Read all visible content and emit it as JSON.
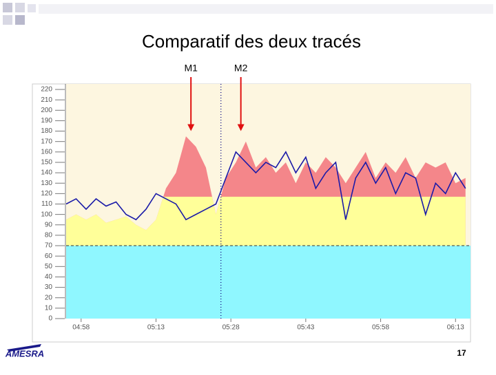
{
  "slide": {
    "title": "Comparatif des deux tracés",
    "page_number": "17",
    "logo": "AMESRA"
  },
  "chart_data": {
    "type": "area-line",
    "x": [
      "04:55",
      "04:57",
      "04:59",
      "05:01",
      "05:03",
      "05:05",
      "05:07",
      "05:09",
      "05:11",
      "05:13",
      "05:15",
      "05:17",
      "05:19",
      "05:21",
      "05:23",
      "05:25",
      "05:27",
      "05:29",
      "05:31",
      "05:33",
      "05:35",
      "05:37",
      "05:39",
      "05:41",
      "05:43",
      "05:45",
      "05:47",
      "05:49",
      "05:51",
      "05:53",
      "05:55",
      "05:57",
      "05:59",
      "06:01",
      "06:03",
      "06:05",
      "06:07",
      "06:09",
      "06:11",
      "06:13",
      "06:15"
    ],
    "series": [
      {
        "style": "area",
        "color": "#f4868a",
        "values": [
          95,
          100,
          95,
          100,
          92,
          95,
          98,
          90,
          85,
          95,
          125,
          140,
          175,
          165,
          145,
          100,
          135,
          150,
          170,
          145,
          155,
          140,
          150,
          130,
          150,
          140,
          155,
          145,
          130,
          145,
          160,
          135,
          150,
          140,
          155,
          135,
          150,
          145,
          150,
          130,
          135
        ]
      },
      {
        "style": "line",
        "color": "#1a1aa8",
        "values": [
          110,
          115,
          105,
          115,
          108,
          112,
          100,
          95,
          105,
          120,
          115,
          110,
          95,
          100,
          105,
          110,
          135,
          160,
          150,
          140,
          150,
          145,
          160,
          140,
          155,
          125,
          140,
          150,
          95,
          135,
          150,
          130,
          145,
          120,
          140,
          135,
          100,
          130,
          120,
          140,
          125
        ]
      }
    ],
    "zones": [
      {
        "from": 0,
        "to": 70,
        "color": "#8ff7ff"
      },
      {
        "from": 70,
        "to": 117,
        "color": "#ffff99"
      },
      {
        "from": 117,
        "color": "#f4868a"
      }
    ],
    "hline": 70,
    "vline": "05:26",
    "annotations": [
      {
        "text": "M1",
        "x": "05:20",
        "value": 180
      },
      {
        "text": "M2",
        "x": "05:30",
        "value": 180
      }
    ],
    "xlim": [
      "04:55",
      "06:16"
    ],
    "xticks": [
      "04:58",
      "05:13",
      "05:28",
      "05:43",
      "05:58",
      "06:13"
    ],
    "ylim": [
      0,
      220
    ],
    "yticks": [
      0,
      10,
      20,
      30,
      40,
      50,
      60,
      70,
      80,
      90,
      100,
      110,
      120,
      130,
      140,
      150,
      160,
      170,
      180,
      190,
      200,
      210,
      220
    ]
  }
}
